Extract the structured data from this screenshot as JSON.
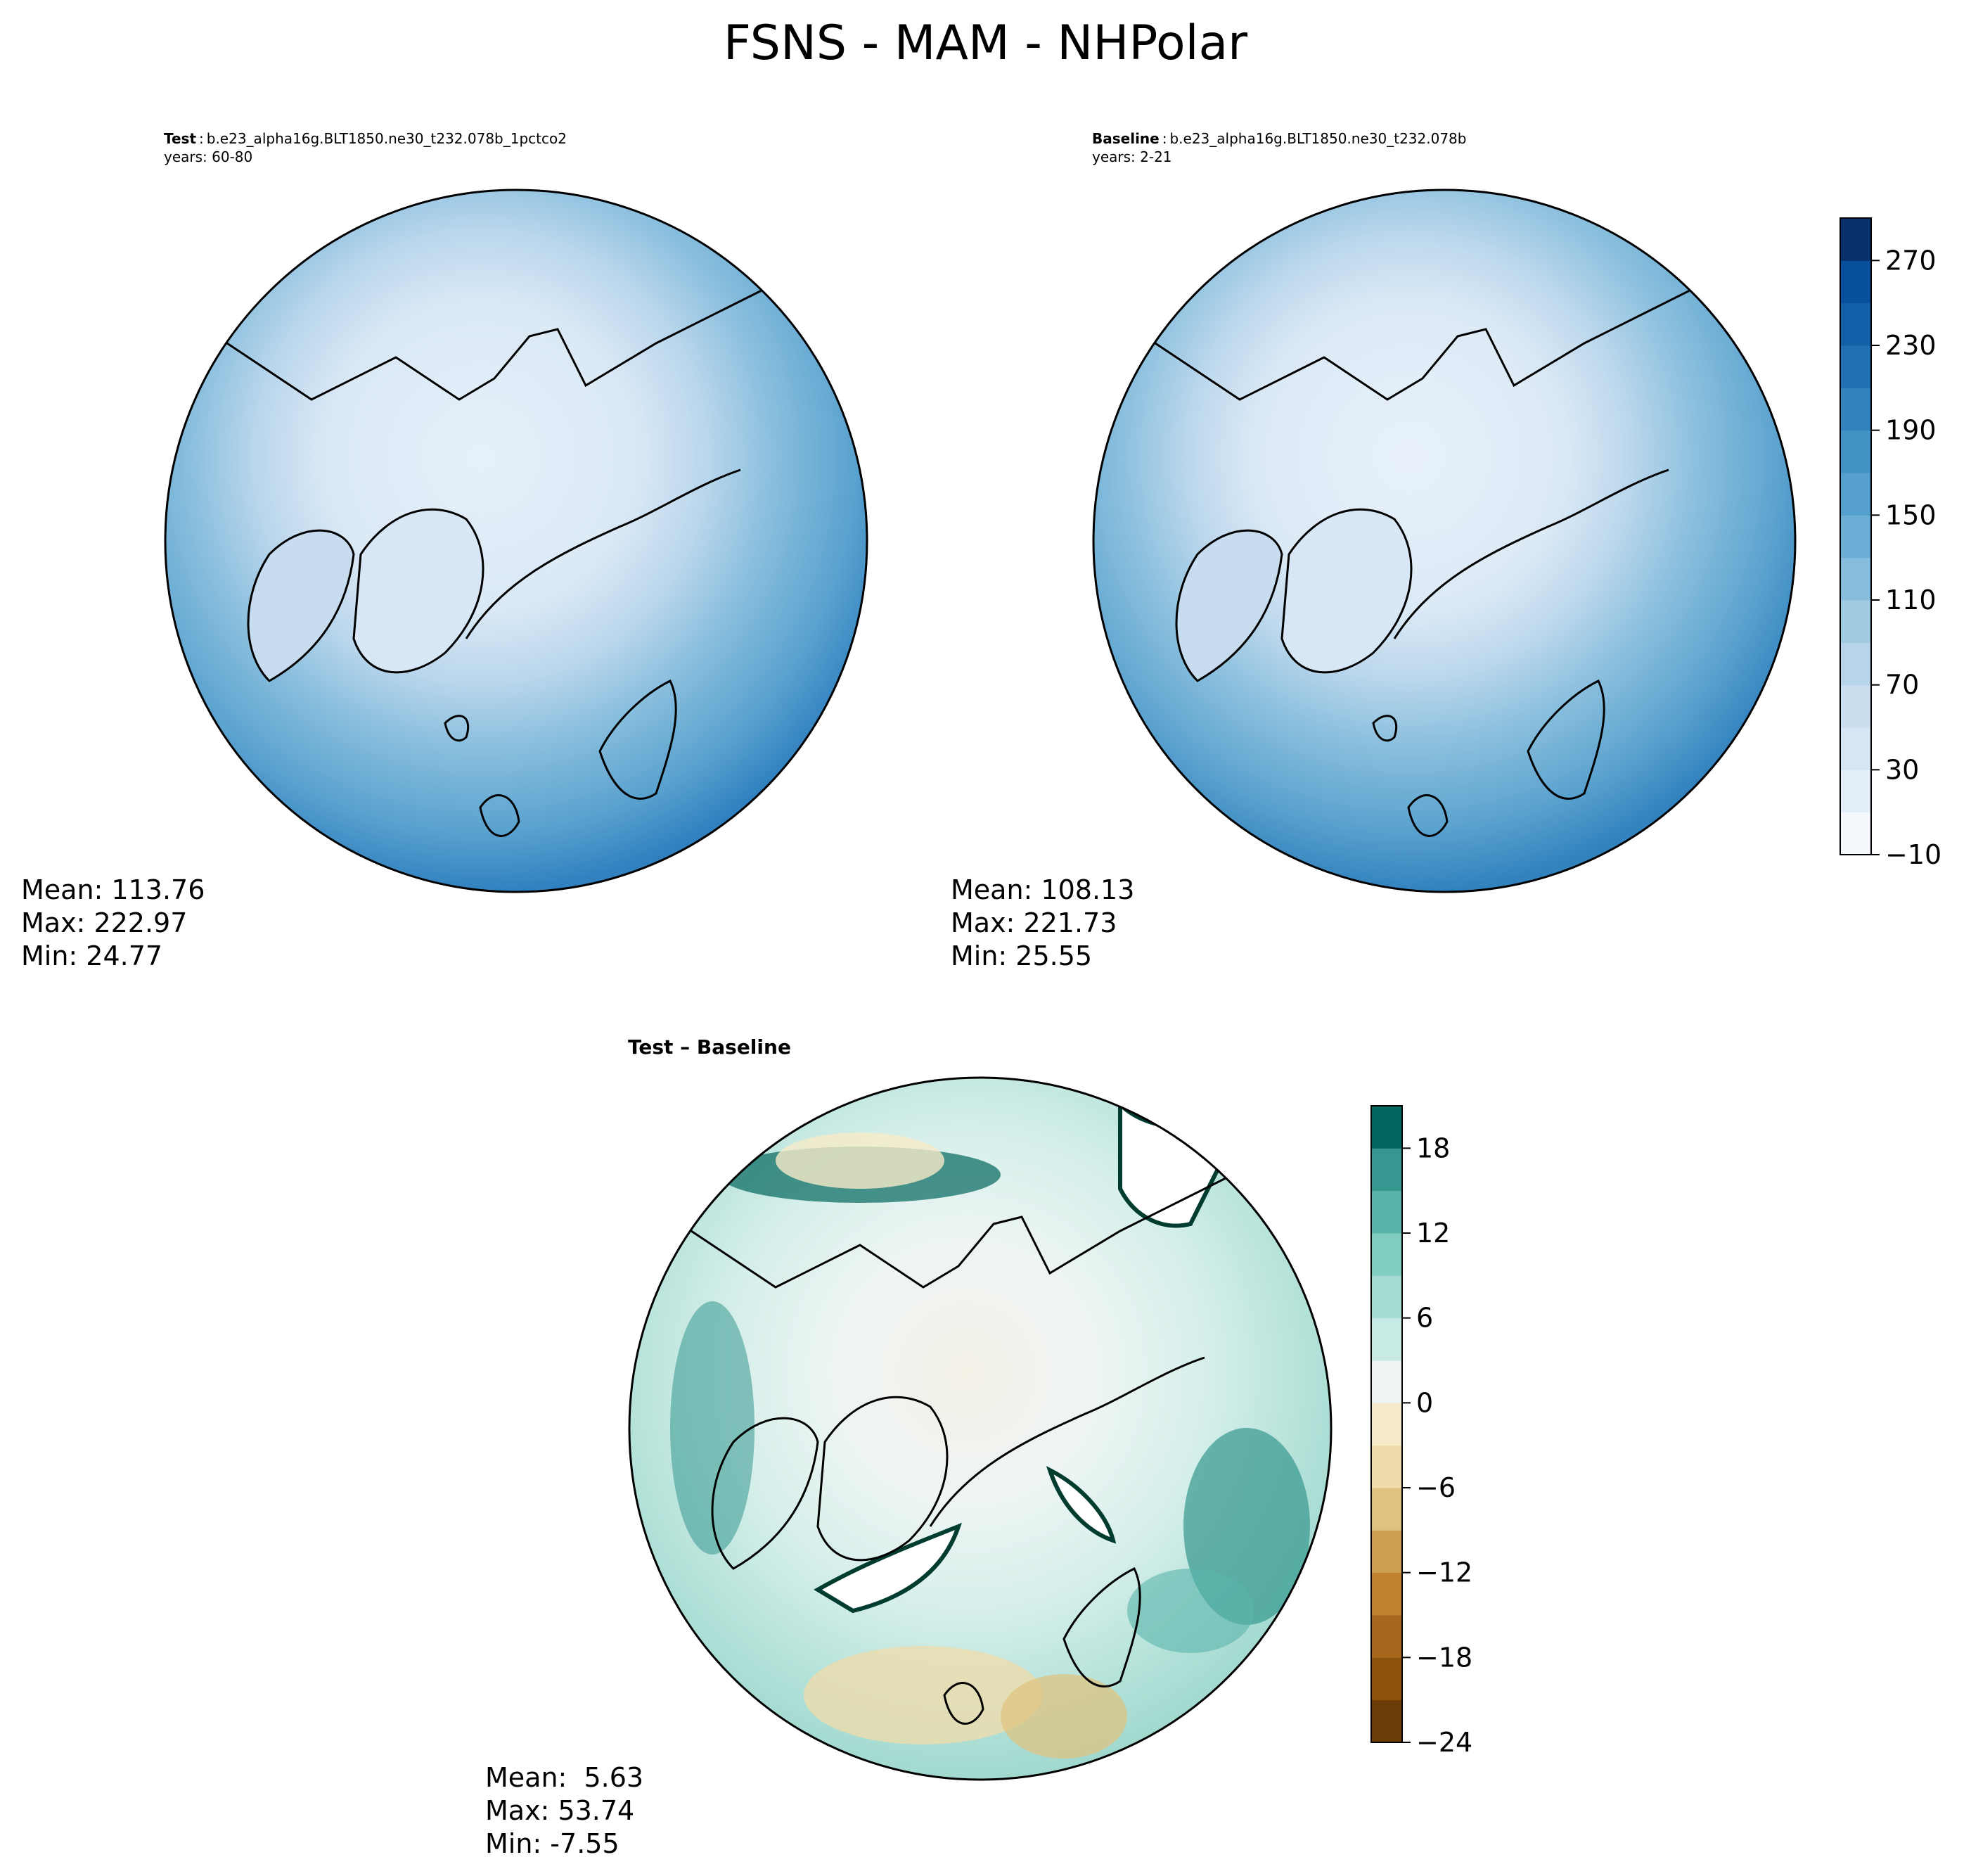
{
  "figure": {
    "title": "FSNS - MAM - NHPolar"
  },
  "panels": {
    "test": {
      "label": "Test",
      "case": "b.e23_alpha16g.BLT1850.ne30_t232.078b_1pctco2",
      "years": "years: 60-80",
      "stats": [
        "Mean: 113.76",
        "Max: 222.97",
        "Min: 24.77"
      ]
    },
    "baseline": {
      "label": "Baseline",
      "case": "b.e23_alpha16g.BLT1850.ne30_t232.078b",
      "years": "years: 2-21",
      "stats": [
        "Mean: 108.13",
        "Max: 221.73",
        "Min: 25.55"
      ]
    },
    "diff": {
      "label": "Test – Baseline",
      "stats": [
        "Mean:  5.63",
        "Max: 53.74",
        "Min: -7.55"
      ]
    }
  },
  "colorbars": {
    "main": {
      "levels": [
        -10,
        10,
        30,
        50,
        70,
        90,
        110,
        130,
        150,
        170,
        190,
        210,
        230,
        250,
        270,
        290
      ],
      "ticks": [
        "270",
        "230",
        "190",
        "150",
        "110",
        "70",
        "30",
        "−10"
      ],
      "tick_values": [
        270,
        230,
        190,
        150,
        110,
        70,
        30,
        -10
      ],
      "colors": [
        "#f5f9fe",
        "#e3eef9",
        "#d6e6f4",
        "#cadef0",
        "#b7d4ea",
        "#9fcae1",
        "#86bcdc",
        "#6aaed6",
        "#56a0ce",
        "#4292c6",
        "#3282be",
        "#2070b4",
        "#1460a8",
        "#08509b",
        "#08306b"
      ]
    },
    "diff": {
      "levels": [
        -24,
        -21,
        -18,
        -15,
        -12,
        -9,
        -6,
        -3,
        0,
        3,
        6,
        9,
        12,
        15,
        18,
        21
      ],
      "ticks": [
        "18",
        "12",
        "6",
        "0",
        "−6",
        "−12",
        "−18",
        "−24"
      ],
      "tick_values": [
        18,
        12,
        6,
        0,
        -6,
        -12,
        -18,
        -24
      ],
      "colors": [
        "#6a3d08",
        "#8c510a",
        "#a6661b",
        "#bf812d",
        "#cfa052",
        "#dfc27d",
        "#eedcac",
        "#f6ebc8",
        "#eef5f4",
        "#c7eae5",
        "#a6dbd1",
        "#80cdc1",
        "#5ab4ac",
        "#35978f",
        "#01665e",
        "#003c30"
      ]
    }
  }
}
